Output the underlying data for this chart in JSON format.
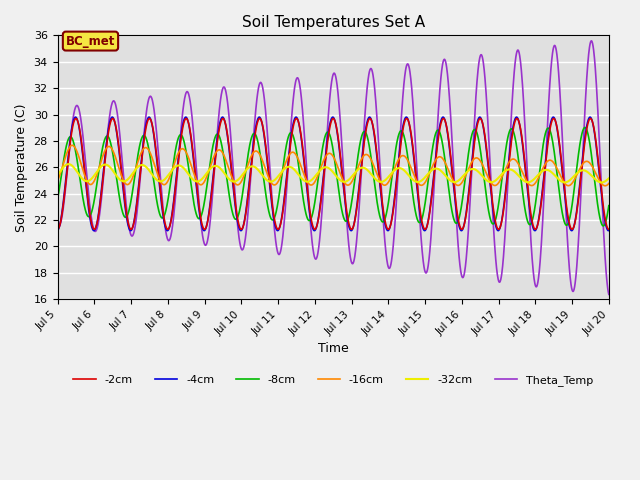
{
  "title": "Soil Temperatures Set A",
  "xlabel": "Time",
  "ylabel": "Soil Temperature (C)",
  "xlim_days": [
    5,
    20
  ],
  "ylim": [
    16,
    36
  ],
  "yticks": [
    16,
    18,
    20,
    22,
    24,
    26,
    28,
    30,
    32,
    34,
    36
  ],
  "xtick_labels": [
    "Jul 5",
    "Jul 6",
    "Jul 7",
    "Jul 8",
    "Jul 9",
    "Jul 10",
    "Jul 11",
    "Jul 12",
    "Jul 13",
    "Jul 14",
    "Jul 15",
    "Jul 16",
    "Jul 17",
    "Jul 18",
    "Jul 19",
    "Jul 20"
  ],
  "bg_color": "#f0f0f0",
  "plot_bg_color": "#e0e0e0",
  "grid_color": "#ffffff",
  "annotation_text": "BC_met",
  "annotation_bg": "#f5e642",
  "annotation_border": "#800000",
  "series": [
    {
      "label": "-2cm",
      "color": "#dd0000",
      "lw": 1.2
    },
    {
      "label": "-4cm",
      "color": "#0000dd",
      "lw": 1.2
    },
    {
      "label": "-8cm",
      "color": "#00bb00",
      "lw": 1.2
    },
    {
      "label": "-16cm",
      "color": "#ff8800",
      "lw": 1.2
    },
    {
      "label": "-32cm",
      "color": "#eeee00",
      "lw": 1.5
    },
    {
      "label": "Theta_Temp",
      "color": "#9933cc",
      "lw": 1.2
    }
  ],
  "n_points": 2000
}
